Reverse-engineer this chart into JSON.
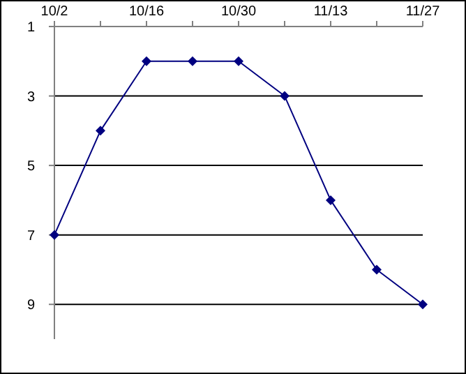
{
  "chart_data": {
    "type": "line",
    "categories": [
      "10/2",
      null,
      "10/16",
      null,
      "10/30",
      null,
      "11/13",
      null,
      "11/27"
    ],
    "series": [
      {
        "color": "#000080",
        "values": [
          7,
          4,
          2,
          2,
          2,
          3,
          6,
          8,
          9
        ]
      }
    ],
    "ylim": [
      10,
      1
    ],
    "yticks": [
      1,
      3,
      5,
      7,
      9
    ],
    "grid": "y",
    "marker": "diamond",
    "line_style": "solid"
  }
}
